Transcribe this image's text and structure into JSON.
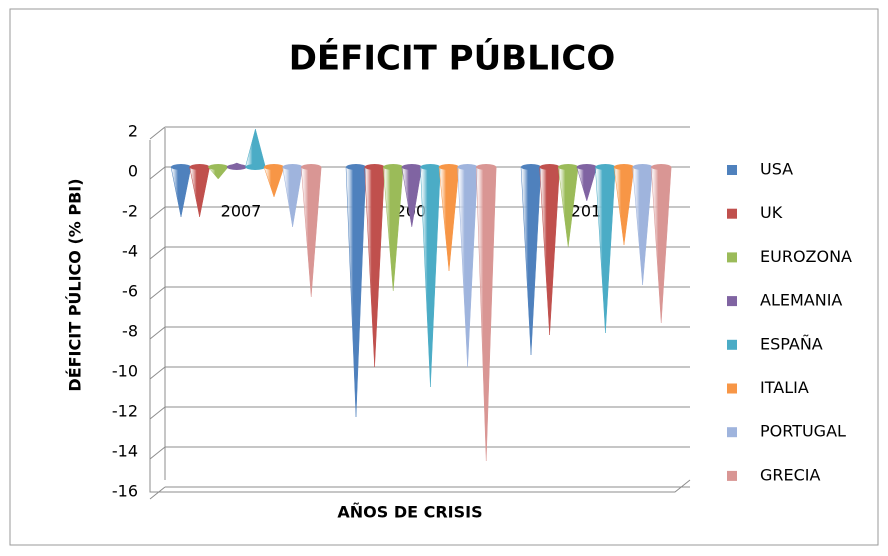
{
  "chart_data": {
    "type": "cone",
    "title": "DÉFICIT PÚBLICO",
    "x_label": "AÑOS DE CRISIS",
    "y_label": "DÉFICIT PÚLICO (% PBI)",
    "categories": [
      "2007",
      "2009",
      "2011"
    ],
    "series": [
      {
        "name": "USA",
        "color": "#4f81bd",
        "values": [
          -2.5,
          -12.5,
          -9.4
        ]
      },
      {
        "name": "UK",
        "color": "#c0504d",
        "values": [
          -2.5,
          -10,
          -8.4
        ]
      },
      {
        "name": "EUROZONA",
        "color": "#9bbb59",
        "values": [
          -0.6,
          -6.2,
          -4
        ]
      },
      {
        "name": "ALEMANIA",
        "color": "#8064a2",
        "values": [
          0.2,
          -3,
          -1.7
        ]
      },
      {
        "name": "ESPAÑA",
        "color": "#4bacc6",
        "values": [
          1.9,
          -11,
          -8.3
        ]
      },
      {
        "name": "ITALIA",
        "color": "#f79646",
        "values": [
          -1.5,
          -5.2,
          -3.9
        ]
      },
      {
        "name": "PORTUGAL",
        "color": "#9fb4dd",
        "values": [
          -3,
          -10,
          -5.9
        ]
      },
      {
        "name": "GRECIA",
        "color": "#d99694",
        "values": [
          -6.5,
          -14.7,
          -7.8
        ]
      }
    ],
    "ylim": [
      -16,
      2
    ],
    "yticks": [
      -16,
      -14,
      -12,
      -10,
      -8,
      -6,
      -4,
      -2,
      0,
      2
    ],
    "grid": true,
    "legend": "right"
  }
}
